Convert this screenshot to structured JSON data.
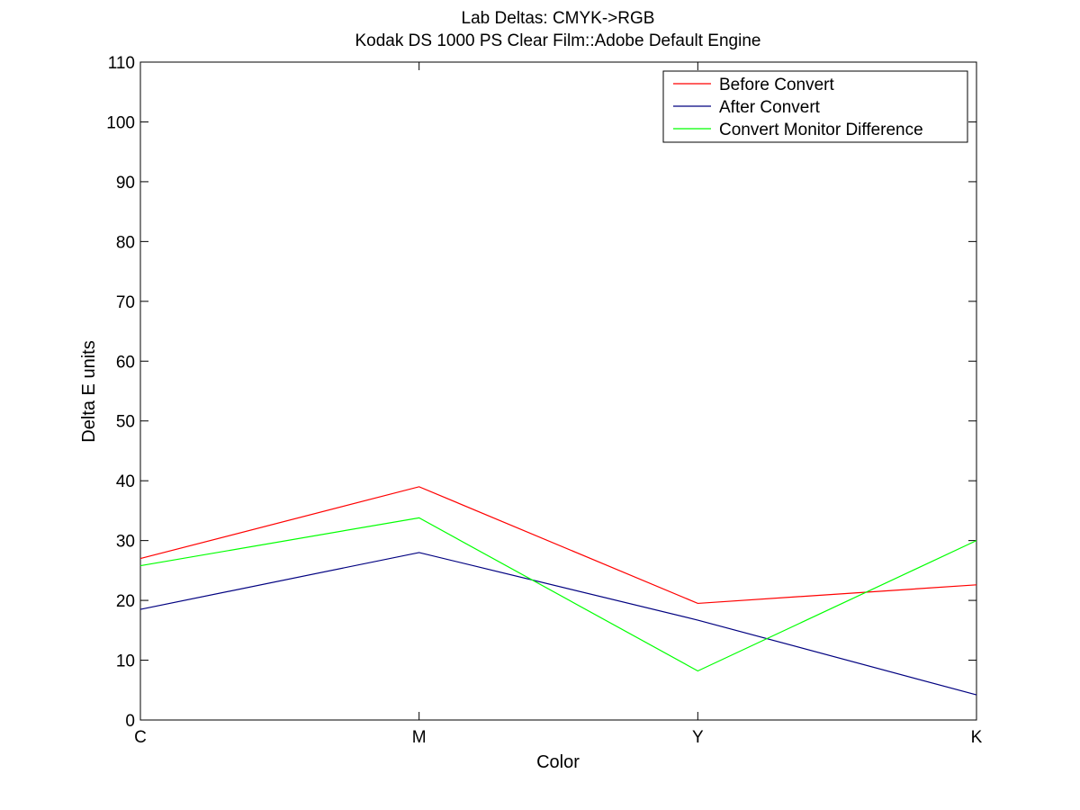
{
  "chart_data": {
    "type": "line",
    "title": "Lab Deltas: CMYK->RGB",
    "subtitle": "Kodak DS 1000 PS Clear Film::Adobe Default Engine",
    "xlabel": "Color",
    "ylabel": "Delta E units",
    "categories": [
      "C",
      "M",
      "Y",
      "K"
    ],
    "ylim": [
      0,
      110
    ],
    "yticks": [
      "0",
      "10",
      "20",
      "30",
      "40",
      "50",
      "60",
      "70",
      "80",
      "90",
      "100",
      "110"
    ],
    "grid": false,
    "legend_position": "top-right",
    "series": [
      {
        "name": "Before Convert",
        "color": "#ff0000",
        "values": [
          27.0,
          39.0,
          19.5,
          22.6
        ]
      },
      {
        "name": "After Convert",
        "color": "#000080",
        "values": [
          18.5,
          28.0,
          16.7,
          4.2
        ]
      },
      {
        "name": "Convert Monitor Difference",
        "color": "#00ff00",
        "values": [
          25.8,
          33.8,
          8.2,
          30.0
        ]
      }
    ]
  }
}
